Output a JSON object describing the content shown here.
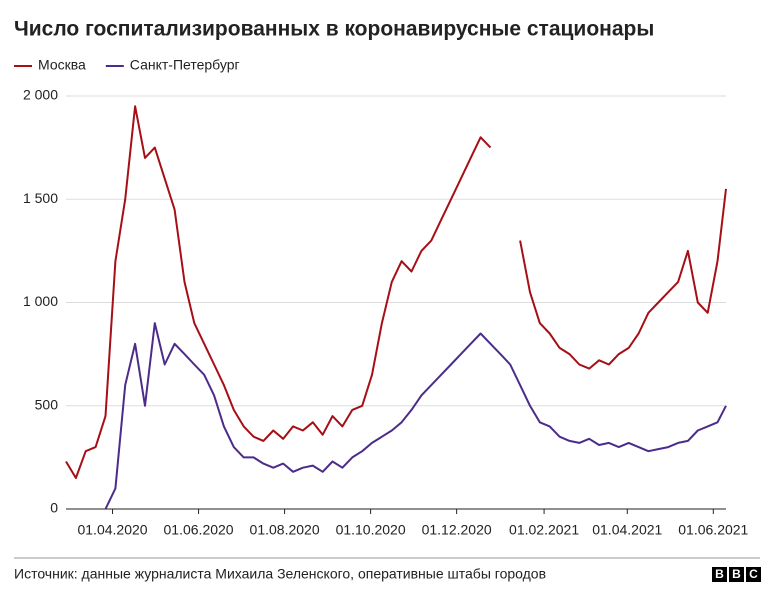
{
  "chart_data": {
    "type": "line",
    "title": "Число госпитализированных в коронавирусные стационары",
    "x": [
      "2020-02-28",
      "2020-03-06",
      "2020-03-13",
      "2020-03-20",
      "2020-03-27",
      "2020-04-03",
      "2020-04-10",
      "2020-04-17",
      "2020-04-24",
      "2020-05-01",
      "2020-05-08",
      "2020-05-15",
      "2020-05-22",
      "2020-05-29",
      "2020-06-05",
      "2020-06-12",
      "2020-06-19",
      "2020-06-26",
      "2020-07-03",
      "2020-07-10",
      "2020-07-17",
      "2020-07-24",
      "2020-07-31",
      "2020-08-07",
      "2020-08-14",
      "2020-08-21",
      "2020-08-28",
      "2020-09-04",
      "2020-09-11",
      "2020-09-18",
      "2020-09-25",
      "2020-10-02",
      "2020-10-09",
      "2020-10-16",
      "2020-10-23",
      "2020-10-30",
      "2020-11-06",
      "2020-11-13",
      "2020-11-20",
      "2020-11-27",
      "2020-12-04",
      "2020-12-11",
      "2020-12-18",
      "2020-12-25",
      "2021-01-01",
      "2021-01-08",
      "2021-01-15",
      "2021-01-22",
      "2021-01-29",
      "2021-02-05",
      "2021-02-12",
      "2021-02-19",
      "2021-02-26",
      "2021-03-05",
      "2021-03-12",
      "2021-03-19",
      "2021-03-26",
      "2021-04-02",
      "2021-04-09",
      "2021-04-16",
      "2021-04-23",
      "2021-04-30",
      "2021-05-07",
      "2021-05-14",
      "2021-05-21",
      "2021-05-28",
      "2021-06-04",
      "2021-06-10"
    ],
    "series": [
      {
        "name": "Москва",
        "color": "#a50f15",
        "values": [
          230,
          150,
          280,
          300,
          450,
          1200,
          1500,
          1950,
          1700,
          1750,
          1600,
          1450,
          1100,
          900,
          800,
          700,
          600,
          480,
          400,
          350,
          330,
          380,
          340,
          400,
          380,
          420,
          360,
          450,
          400,
          480,
          500,
          650,
          900,
          1100,
          1200,
          1150,
          1250,
          1300,
          1400,
          1500,
          1600,
          1700,
          1800,
          1750,
          null,
          null,
          1300,
          1050,
          900,
          850,
          780,
          750,
          700,
          680,
          720,
          700,
          750,
          780,
          850,
          950,
          1000,
          1050,
          1100,
          1250,
          1000,
          950,
          1200,
          1550
        ]
      },
      {
        "name": "Санкт-Петербург",
        "color": "#4b2c8a",
        "values": [
          null,
          null,
          null,
          null,
          0,
          100,
          600,
          800,
          500,
          900,
          700,
          800,
          750,
          700,
          650,
          550,
          400,
          300,
          250,
          250,
          220,
          200,
          220,
          180,
          200,
          210,
          180,
          230,
          200,
          250,
          280,
          320,
          350,
          380,
          420,
          480,
          550,
          600,
          650,
          700,
          750,
          800,
          850,
          800,
          750,
          700,
          600,
          500,
          420,
          400,
          350,
          330,
          320,
          340,
          310,
          320,
          300,
          320,
          300,
          280,
          290,
          300,
          320,
          330,
          380,
          400,
          420,
          500
        ]
      }
    ],
    "xlim": [
      "2020-02-28",
      "2021-06-10"
    ],
    "xticks": [
      {
        "value": "2020-04-01",
        "label": "01.04.2020"
      },
      {
        "value": "2020-06-01",
        "label": "01.06.2020"
      },
      {
        "value": "2020-08-01",
        "label": "01.08.2020"
      },
      {
        "value": "2020-10-01",
        "label": "01.10.2020"
      },
      {
        "value": "2020-12-01",
        "label": "01.12.2020"
      },
      {
        "value": "2021-02-01",
        "label": "01.02.2021"
      },
      {
        "value": "2021-04-01",
        "label": "01.04.2021"
      },
      {
        "value": "2021-06-01",
        "label": "01.06.2021"
      }
    ],
    "ylim": [
      0,
      2000
    ],
    "yticks": [
      0,
      500,
      {
        "value": 1000,
        "label": "1 000"
      },
      {
        "value": 1500,
        "label": "1 500"
      },
      {
        "value": 2000,
        "label": "2 000"
      }
    ],
    "grid": true,
    "legend": "top-left"
  },
  "footer": {
    "source": "Источник: данные журналиста Михаила Зеленского, оперативные штабы городов",
    "logo": [
      "B",
      "B",
      "C"
    ]
  }
}
